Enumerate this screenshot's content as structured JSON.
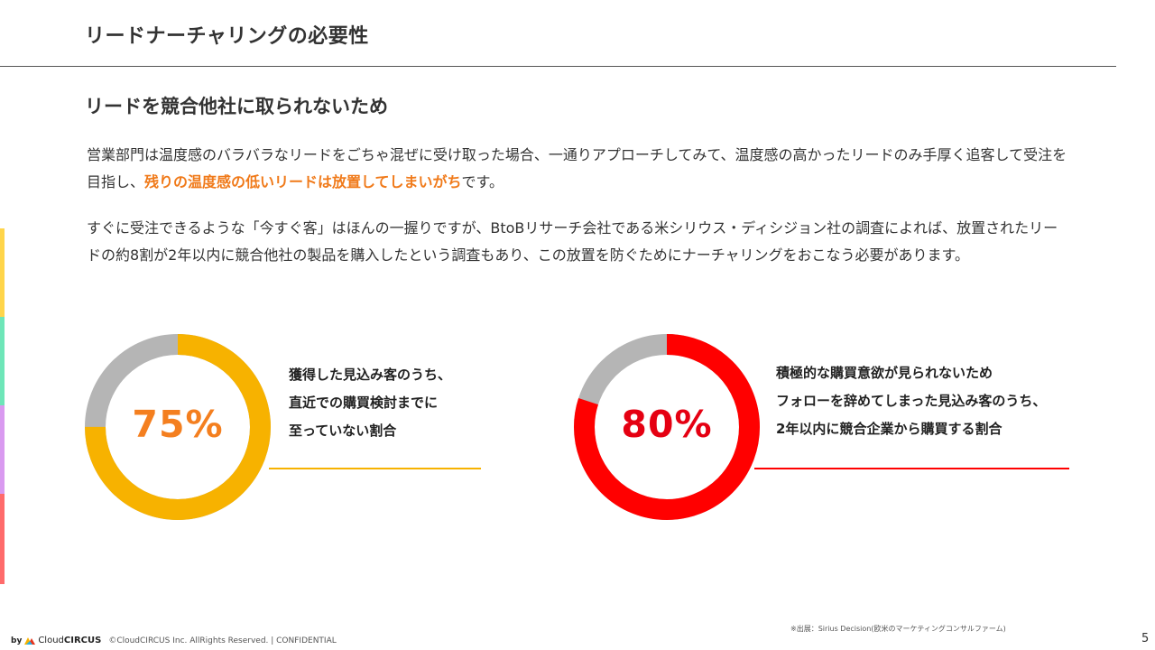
{
  "header": {
    "title": "リードナーチャリングの必要性"
  },
  "section": {
    "heading": "リードを競合他社に取られないため"
  },
  "paragraphs": {
    "p1_before": "営業部門は温度感のバラバラなリードをごちゃ混ぜに受け取った場合、一通りアプローチしてみて、温度感の高かったリードのみ手厚く追客して受注を目指し、",
    "p1_highlight": "残りの温度感の低いリードは放置してしまいがち",
    "p1_after": "です。",
    "p2": "すぐに受注できるような「今すぐ客」はほんの一握りですが、BtoBリサーチ会社である米シリウス・ディシジョン社の調査によれば、放置されたリードの約8割が2年以内に競合他社の製品を購入したという調査もあり、この放置を防ぐためにナーチャリングをおこなう必要があります。"
  },
  "stats": [
    {
      "value_label": "75%",
      "fraction": 0.75,
      "caption": [
        "獲得した見込み客のうち、",
        "直近での購買検討までに",
        "至っていない割合"
      ],
      "color": "#f7b200",
      "text_color": "#f47f1f",
      "rest_color": "#b5b5b5"
    },
    {
      "value_label": "80%",
      "fraction": 0.8,
      "caption": [
        "積極的な購買意欲が見られないため",
        "フォローを辞めてしまった見込み客のうち、",
        "2年以内に競合企業から購買する割合"
      ],
      "color": "#ff0000",
      "text_color": "#e50012",
      "rest_color": "#b5b5b5"
    }
  ],
  "accent_colors": [
    "#ffd54a",
    "#6ee6b8",
    "#d99af0",
    "#ff6b6b"
  ],
  "source_note": "※出展：Sirius Decision(欧米のマーケティングコンサルファーム)",
  "footer": {
    "by": "by",
    "brand_prefix": "Cloud",
    "brand_suffix": "CIRCUS",
    "copyright": "©CloudCIRCUS Inc. AllRights Reserved. | CONFIDENTIAL"
  },
  "page_number": "5"
}
